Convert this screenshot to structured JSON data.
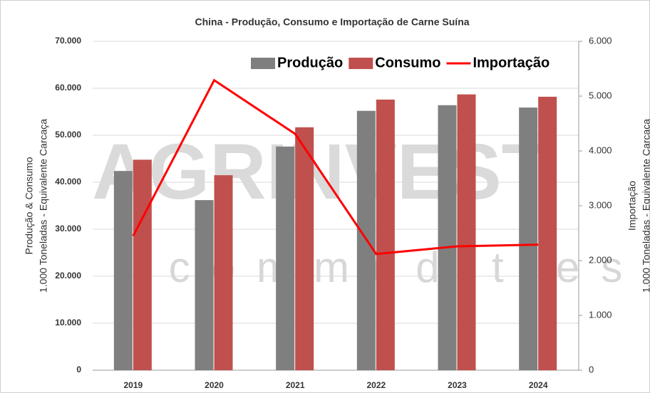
{
  "chart_data": {
    "type": "bar_line",
    "title": "China - Produção, Consumo e Importação de Carne Suína",
    "y_label": [
      "Produção & Consumo",
      "1.000 Toneladas - Equivalente Carcaça"
    ],
    "y2_label": [
      "Importação",
      "1.000 Toneladas - Equivalente Carcaça"
    ],
    "watermark": [
      "AGRINVEST",
      "commodities"
    ],
    "categories": [
      "2019",
      "2020",
      "2021",
      "2022",
      "2023",
      "2024"
    ],
    "series": [
      {
        "name": "Produção",
        "type": "bar",
        "color": "#7f7f7f",
        "values": [
          42400,
          36200,
          47600,
          55200,
          56400,
          55900
        ]
      },
      {
        "name": "Consumo",
        "type": "bar",
        "color": "#c0504d",
        "values": [
          44800,
          41500,
          51700,
          57600,
          58700,
          58200
        ]
      },
      {
        "name": "Importação",
        "type": "line",
        "axis": "y2",
        "color": "#ff0000",
        "values": [
          2450,
          5290,
          4310,
          2120,
          2260,
          2290
        ]
      }
    ],
    "ylim": [
      0,
      70000
    ],
    "yticks": [
      0,
      {
        "value": 10000,
        "label": "10.000"
      },
      {
        "value": 20000,
        "label": "20.000"
      },
      {
        "value": 30000,
        "label": "30.000"
      },
      {
        "value": 40000,
        "label": "40.000"
      },
      {
        "value": 50000,
        "label": "50.000"
      },
      {
        "value": 60000,
        "label": "60.000"
      },
      {
        "value": 70000,
        "label": "70.000"
      }
    ],
    "y2lim": [
      0,
      6000
    ],
    "y2ticks": [
      0,
      {
        "value": 1000,
        "label": "1.000"
      },
      {
        "value": 2000,
        "label": "2.000"
      },
      {
        "value": 3000,
        "label": "3.000"
      },
      {
        "value": 4000,
        "label": "4.000"
      },
      {
        "value": 5000,
        "label": "5.000"
      },
      {
        "value": 6000,
        "label": "6.000"
      }
    ],
    "grid": true,
    "legend": "top-right"
  }
}
